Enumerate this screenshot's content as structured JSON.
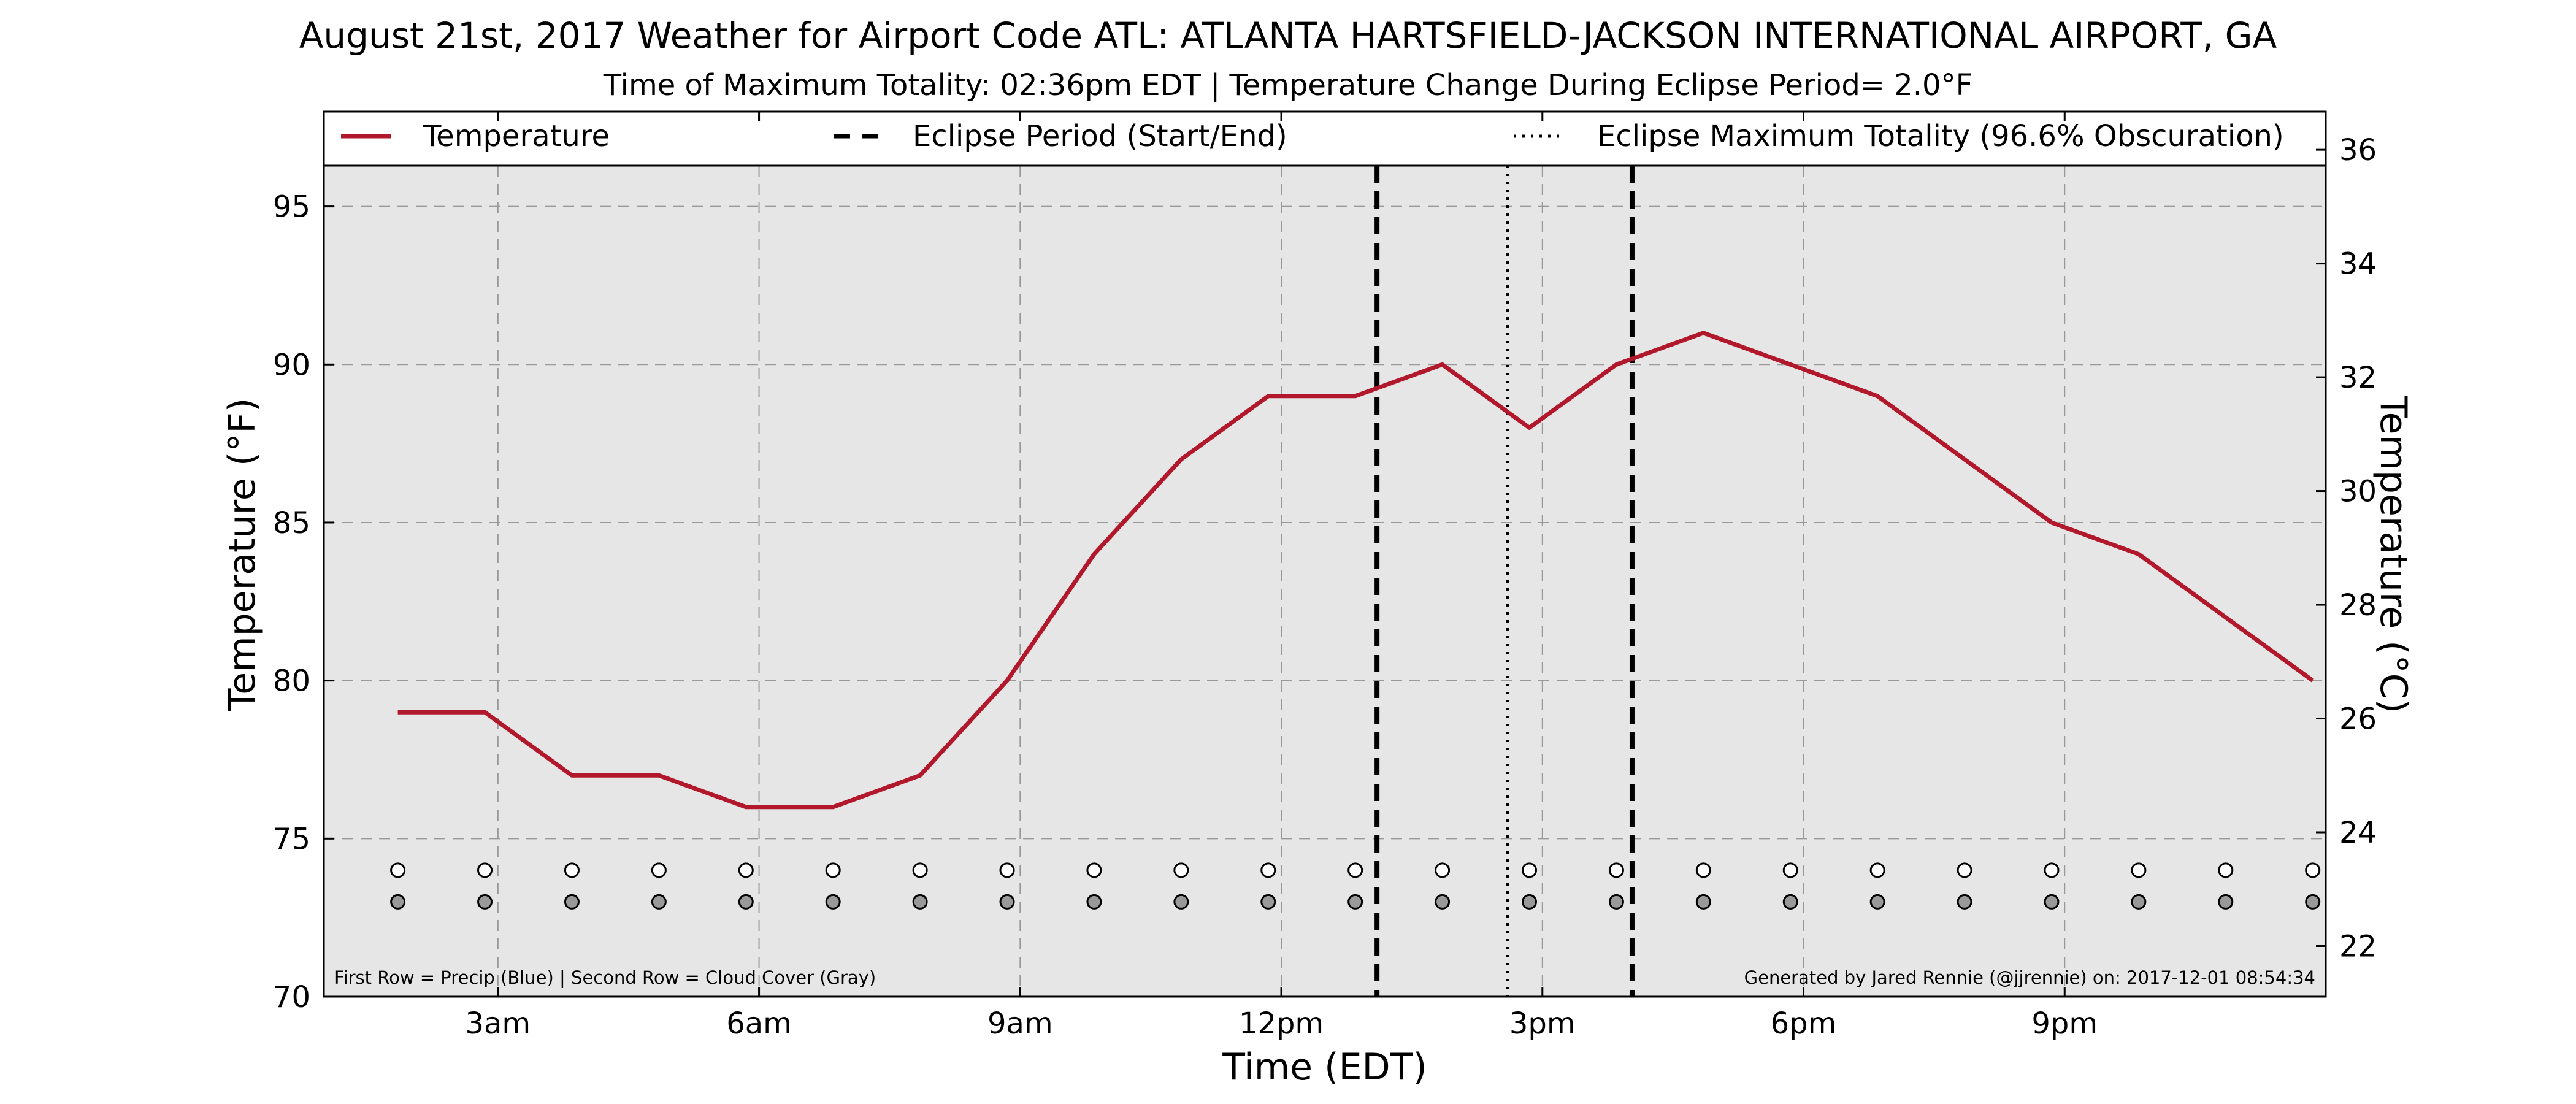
{
  "chart_data": {
    "type": "line",
    "title": "August 21st, 2017 Weather for Airport Code ATL: ATLANTA HARTSFIELD-JACKSON INTERNATIONAL  AIRPORT, GA",
    "subtitle": "Time of Maximum Totality: 02:36pm EDT | Temperature Change During Eclipse Period= 2.0°F",
    "xlabel": "Time (EDT)",
    "ylabel": "Temperature (°F)",
    "ylabel_right": "Temperature (°C)",
    "xlim": [
      1,
      24
    ],
    "ylim": [
      70,
      98
    ],
    "ylim_right_c": [
      21.11,
      36.67
    ],
    "x_ticks": [
      {
        "x": 3,
        "label": "3am"
      },
      {
        "x": 6,
        "label": "6am"
      },
      {
        "x": 9,
        "label": "9am"
      },
      {
        "x": 12,
        "label": "12pm"
      },
      {
        "x": 15,
        "label": "3pm"
      },
      {
        "x": 18,
        "label": "6pm"
      },
      {
        "x": 21,
        "label": "9pm"
      }
    ],
    "y_ticks": [
      70,
      75,
      80,
      85,
      90,
      95
    ],
    "y_ticks_right": [
      22,
      24,
      26,
      28,
      30,
      32,
      34,
      36
    ],
    "grid": true,
    "legend_position": "top",
    "series": [
      {
        "name": "Temperature",
        "color": "#b2182b",
        "x": [
          1.85,
          2.85,
          3.85,
          4.85,
          5.85,
          6.85,
          7.85,
          8.85,
          9.85,
          10.85,
          11.85,
          12.85,
          13.85,
          14.85,
          15.85,
          16.85,
          17.85,
          18.85,
          19.85,
          20.85,
          21.85,
          22.85,
          23.85
        ],
        "values": [
          79,
          79,
          77,
          77,
          76,
          76,
          77,
          80,
          84,
          87,
          89,
          89,
          90,
          88,
          90,
          91,
          90,
          89,
          87,
          85,
          84,
          82,
          80
        ]
      }
    ],
    "eclipse_lines": [
      {
        "name": "Eclipse Period (Start/End)",
        "style": "dashed",
        "x": [
          13.1,
          16.03
        ]
      },
      {
        "name": "Eclipse Maximum Totality (96.6% Obscuration)",
        "style": "dotted",
        "x": [
          14.6
        ]
      }
    ],
    "markers": {
      "precip_row_y": 74,
      "cloud_row_y": 73,
      "precip_color": "#ffffff",
      "cloud_color": "#999999",
      "x": [
        1.85,
        2.85,
        3.85,
        4.85,
        5.85,
        6.85,
        7.85,
        8.85,
        9.85,
        10.85,
        11.85,
        12.85,
        13.85,
        14.85,
        15.85,
        16.85,
        17.85,
        18.85,
        19.85,
        20.85,
        21.85,
        22.85,
        23.85
      ]
    },
    "footnote_left": "First Row = Precip (Blue) | Second Row = Cloud Cover (Gray)",
    "footnote_right": "Generated by Jared Rennie (@jjrennie) on: 2017-12-01 08:54:34"
  },
  "colors": {
    "plot_background": "#e6e6e6",
    "grid": "#999999",
    "temperature_line": "#b2182b"
  }
}
